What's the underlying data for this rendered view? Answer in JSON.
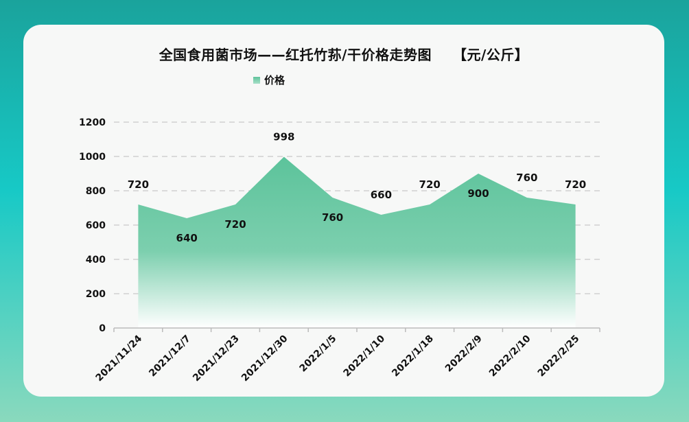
{
  "chart_data": {
    "type": "area",
    "title": "全国食用菌市场——红托竹荪/干价格走势图　　【元/公斤】",
    "categories": [
      "2021/11/24",
      "2021/12/7",
      "2021/12/23",
      "2021/12/30",
      "2022/1/5",
      "2022/1/10",
      "2022/1/18",
      "2022/2/9",
      "2022/2/10",
      "2022/2/25"
    ],
    "series": [
      {
        "name": "价格",
        "values": [
          720,
          640,
          720,
          998,
          760,
          660,
          720,
          900,
          760,
          720
        ]
      }
    ],
    "yticks": [
      0,
      200,
      400,
      600,
      800,
      1000,
      1200
    ],
    "ylim": [
      0,
      1200
    ],
    "grid": true,
    "legend": "top",
    "colors": {
      "area_top": "#5cc39b",
      "area_bottom": "#ffffff"
    }
  }
}
